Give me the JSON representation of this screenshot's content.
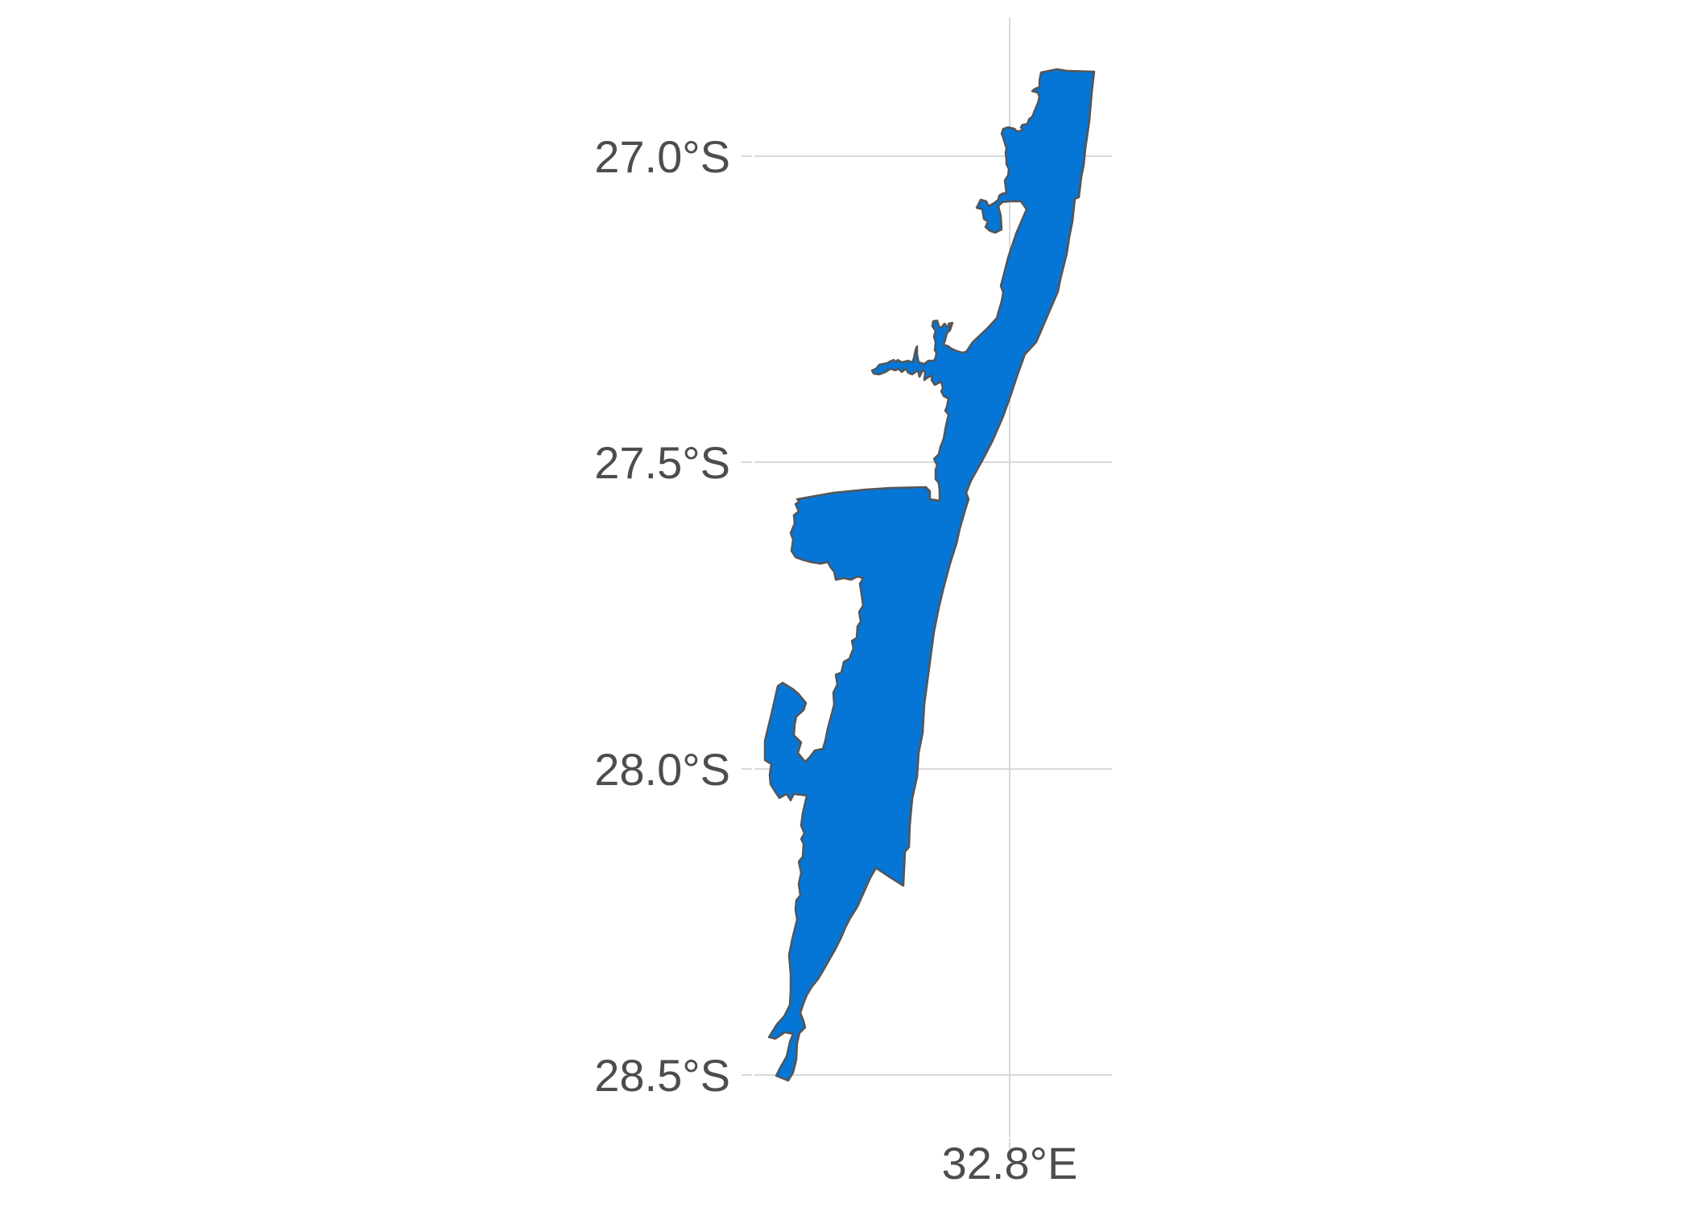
{
  "map": {
    "fill_color": "#0576d6",
    "outline_color": "#555555",
    "y_axis": {
      "ticks": [
        {
          "value": -27.0,
          "label": "27.0°S"
        },
        {
          "value": -27.5,
          "label": "27.5°S"
        },
        {
          "value": -28.0,
          "label": "28.0°S"
        },
        {
          "value": -28.5,
          "label": "28.5°S"
        }
      ]
    },
    "x_axis": {
      "ticks": [
        {
          "value": 32.8,
          "label": "32.8°E"
        }
      ]
    },
    "grid": true
  }
}
